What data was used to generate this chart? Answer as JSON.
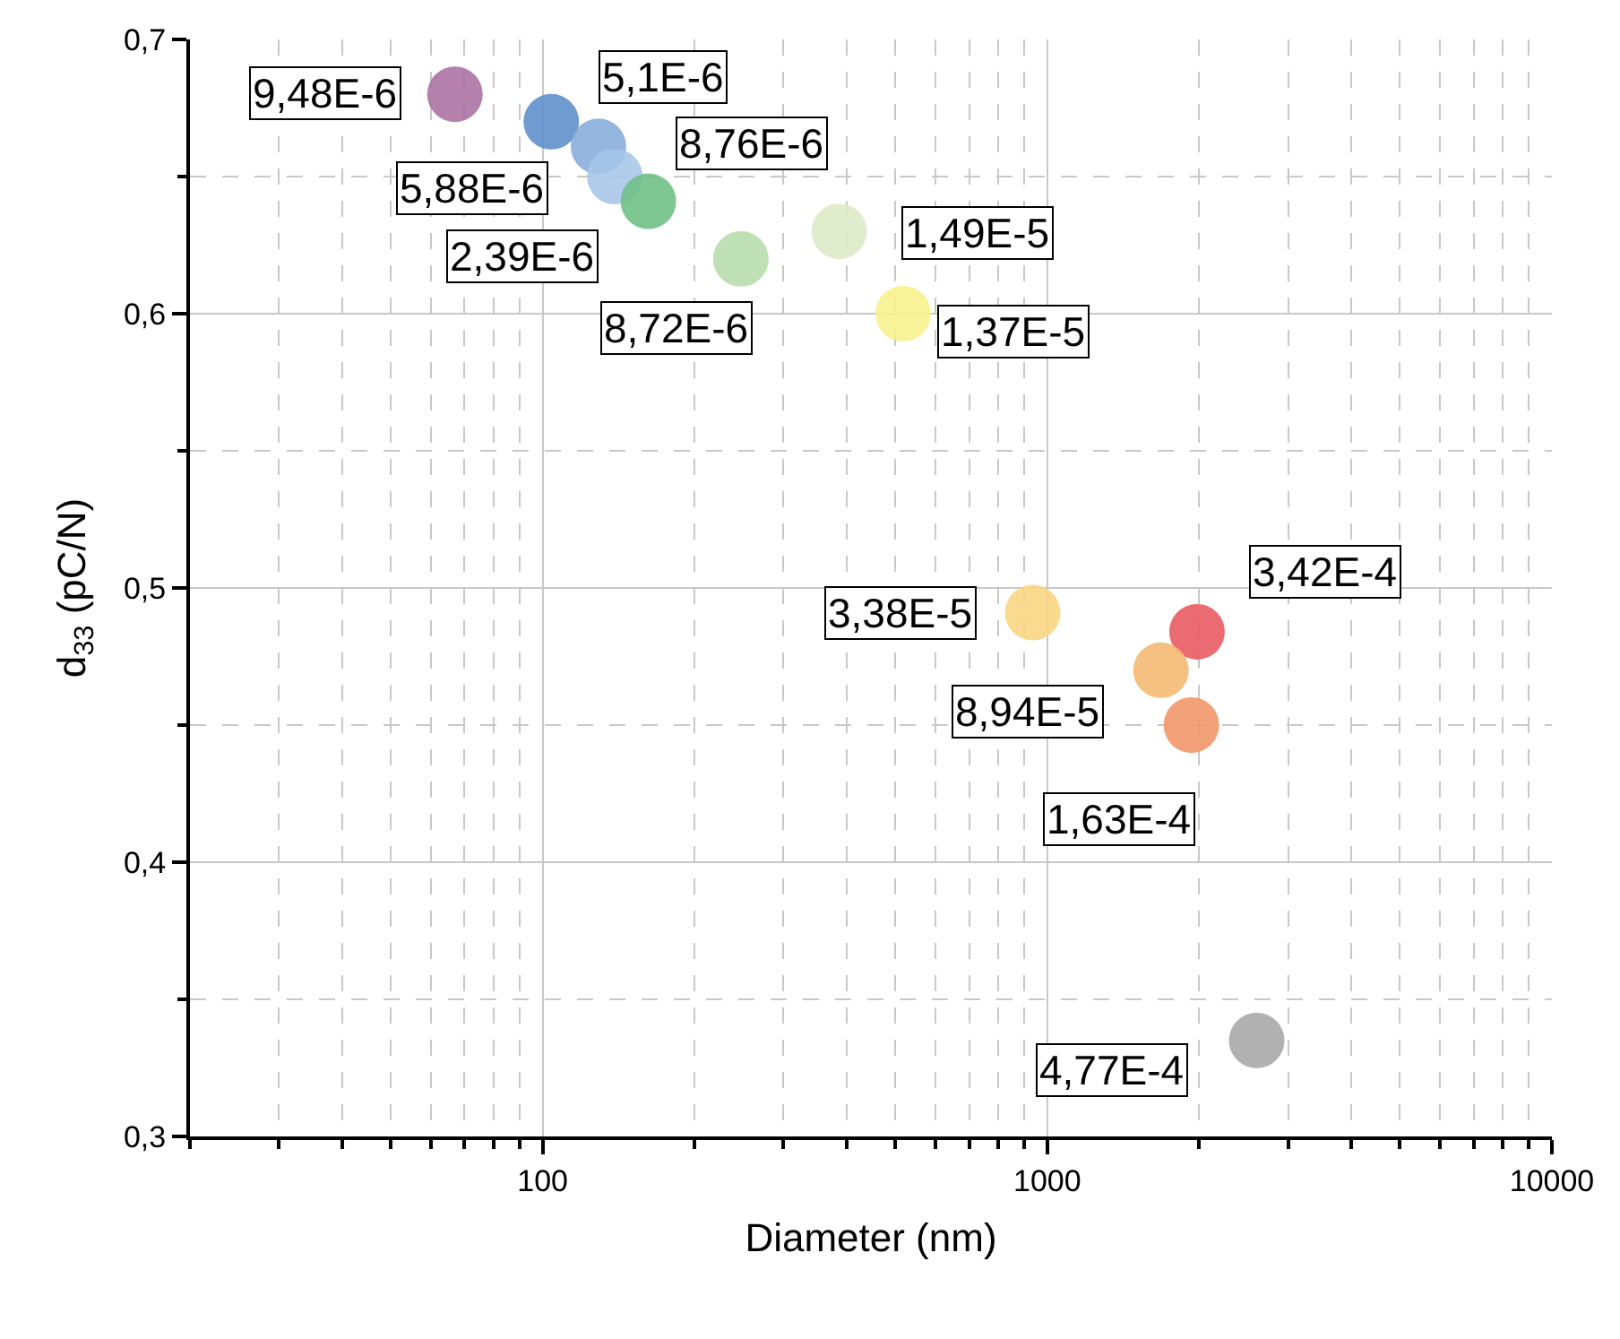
{
  "chart_data": {
    "type": "scatter",
    "xlabel": "Diameter (nm)",
    "ylabel": "d$_{33}$ (pC/N)",
    "log": "x",
    "grid": true,
    "marker": "circle",
    "xlim": [
      20,
      10000
    ],
    "xticks": [
      100,
      1000,
      10000
    ],
    "ylim": [
      0.3,
      0.7
    ],
    "yticks": [
      {
        "value": 0.3,
        "label": "0,3"
      },
      {
        "value": 0.4,
        "label": "0,4"
      },
      {
        "value": 0.5,
        "label": "0,5"
      },
      {
        "value": 0.6,
        "label": "0,6"
      },
      {
        "value": 0.7,
        "label": "0,7"
      }
    ],
    "x": [
      67,
      104,
      129,
      139,
      162,
      247,
      387,
      518,
      936,
      1980,
      1680,
      1930,
      2600
    ],
    "values": [
      0.68,
      0.67,
      0.661,
      0.65,
      0.641,
      0.62,
      0.63,
      0.6,
      0.491,
      0.484,
      0.47,
      0.45,
      0.335
    ],
    "colors": [
      "#a9709f",
      "#5b8dc9",
      "#86acd9",
      "#a6c6e8",
      "#6cbf84",
      "#b6dcaa",
      "#dde9c6",
      "#f7f08a",
      "#f8d57f",
      "#e8575f",
      "#f4b86f",
      "#f09467",
      "#a6a6a6"
    ],
    "value_labels": [
      "9,48E-6",
      "5,1E-6",
      "8,76E-6",
      "5,88E-6",
      "2,39E-6",
      "8,72E-6",
      "1,49E-5",
      "1,37E-5",
      "3,38E-5",
      "3,42E-4",
      "8,94E-5",
      "1,63E-4",
      "4,77E-4"
    ]
  }
}
